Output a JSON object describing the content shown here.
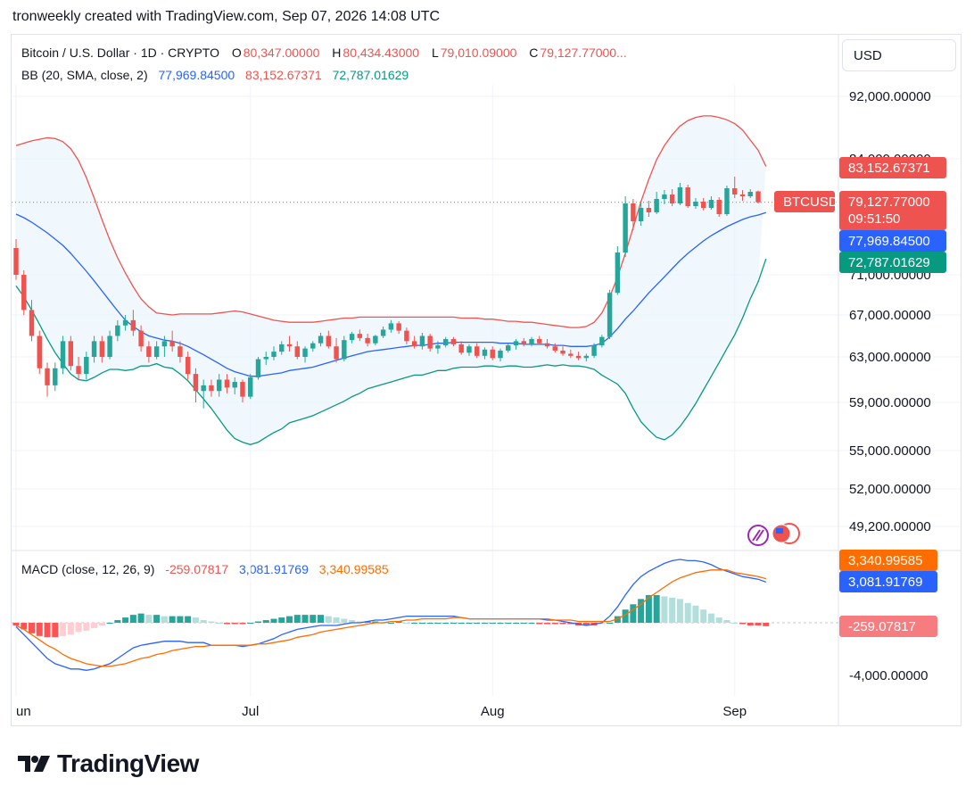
{
  "header": {
    "text": "tronweekly created with TradingView.com, Sep 07, 2026 14:08 UTC"
  },
  "legend": {
    "symbol": "Bitcoin / U.S. Dollar · 1D · CRYPTO",
    "open_label": "O",
    "open": "80,347.00000",
    "high_label": "H",
    "high": "80,434.43000",
    "low_label": "L",
    "low": "79,010.09000",
    "close_label": "C",
    "close": "79,127.77000...",
    "bb_label": "BB (20, SMA, close, 2)",
    "bb_basis": "77,969.84500",
    "bb_upper": "83,152.67371",
    "bb_lower": "72,787.01629",
    "macd_label": "MACD (close, 12, 26, 9)",
    "macd_hist": "-259.07817",
    "macd_line": "3,081.91769",
    "macd_signal": "3,340.99585"
  },
  "currency_button": "USD",
  "badges": {
    "upper": "83,152.67371",
    "ticker": "BTCUSD",
    "price": "79,127.77000",
    "countdown": "09:51:50",
    "basis": "77,969.84500",
    "lower": "72,787.01629",
    "macd_signal": "3,340.99585",
    "macd_line": "3,081.91769",
    "macd_hist": "-259.07817"
  },
  "colors": {
    "up": "#26a69a",
    "down": "#ef5350",
    "bb_upper": "#ef5350",
    "bb_basis": "#2962ff",
    "bb_lower": "#089981",
    "bb_fill": "#e3f2fd",
    "macd_line": "#2962ff",
    "signal_line": "#ff6d00"
  },
  "footer_brand": "TradingView",
  "chart_data": [
    {
      "type": "candlestick",
      "title": "Bitcoin / U.S. Dollar · 1D · CRYPTO",
      "y_ticks": [
        "92,000.00000",
        "84,000.00000",
        "71,000.00000",
        "67,000.00000",
        "63,000.00000",
        "59,000.00000",
        "55,000.00000",
        "52,000.00000",
        "49,200.00000"
      ],
      "y_tick_values": [
        92000,
        84000,
        71000,
        67000,
        63000,
        59000,
        55000,
        52000,
        49200
      ],
      "x_ticks": [
        {
          "label": "Jun",
          "index": 0
        },
        {
          "label": "Jul",
          "index": 30
        },
        {
          "label": "Aug",
          "index": 61
        },
        {
          "label": "Sep",
          "index": 92
        }
      ],
      "ohlc": [
        [
          74000,
          75000,
          70500,
          71000
        ],
        [
          71000,
          71500,
          67000,
          67500
        ],
        [
          67500,
          68500,
          64500,
          65000
        ],
        [
          65000,
          65500,
          61500,
          62000
        ],
        [
          62000,
          62500,
          59500,
          60500
        ],
        [
          60500,
          62500,
          60000,
          62000
        ],
        [
          62000,
          65000,
          61500,
          64500
        ],
        [
          64500,
          65000,
          61800,
          62200
        ],
        [
          62200,
          63000,
          61000,
          61500
        ],
        [
          61500,
          63500,
          61000,
          63000
        ],
        [
          63000,
          65000,
          62500,
          64500
        ],
        [
          64500,
          65000,
          62500,
          63000
        ],
        [
          63000,
          65500,
          62800,
          65000
        ],
        [
          65000,
          66500,
          64500,
          66000
        ],
        [
          66000,
          67000,
          65500,
          66500
        ],
        [
          66500,
          67500,
          65000,
          65500
        ],
        [
          65500,
          66000,
          63500,
          64000
        ],
        [
          64000,
          64500,
          62500,
          63000
        ],
        [
          63000,
          64500,
          62800,
          64000
        ],
        [
          64000,
          65000,
          63000,
          64500
        ],
        [
          64500,
          65500,
          63500,
          64000
        ],
        [
          64000,
          64500,
          62500,
          63000
        ],
        [
          63000,
          63500,
          61000,
          61500
        ],
        [
          61500,
          62000,
          59000,
          60000
        ],
        [
          60000,
          61000,
          58500,
          60500
        ],
        [
          60500,
          61000,
          59500,
          60000
        ],
        [
          60000,
          61500,
          59500,
          61000
        ],
        [
          61000,
          61500,
          59800,
          60300
        ],
        [
          60300,
          61200,
          59700,
          60800
        ],
        [
          60800,
          61000,
          59000,
          59500
        ],
        [
          59500,
          61500,
          59300,
          61200
        ],
        [
          61200,
          63000,
          61000,
          62800
        ],
        [
          62800,
          63500,
          62300,
          63000
        ],
        [
          63000,
          64000,
          62700,
          63500
        ],
        [
          63500,
          64500,
          63200,
          64200
        ],
        [
          64200,
          65000,
          63500,
          64000
        ],
        [
          64000,
          64500,
          62800,
          63000
        ],
        [
          63000,
          64000,
          62500,
          63800
        ],
        [
          63800,
          64500,
          63500,
          64300
        ],
        [
          64300,
          65300,
          64000,
          65000
        ],
        [
          65000,
          65500,
          63800,
          64000
        ],
        [
          64000,
          64800,
          62500,
          62800
        ],
        [
          62800,
          65000,
          62600,
          64600
        ],
        [
          64600,
          65400,
          64300,
          65200
        ],
        [
          65200,
          65600,
          64500,
          64800
        ],
        [
          64800,
          65200,
          64000,
          64300
        ],
        [
          64300,
          65100,
          64100,
          65000
        ],
        [
          65000,
          65900,
          64800,
          65600
        ],
        [
          65600,
          66500,
          65300,
          66200
        ],
        [
          66200,
          66400,
          65200,
          65500
        ],
        [
          65500,
          65800,
          64200,
          64500
        ],
        [
          64500,
          65000,
          63800,
          64000
        ],
        [
          64000,
          65300,
          63700,
          65000
        ],
        [
          65000,
          65200,
          63500,
          63800
        ],
        [
          63800,
          64500,
          63300,
          64100
        ],
        [
          64100,
          64900,
          63900,
          64700
        ],
        [
          64700,
          64900,
          64000,
          64200
        ],
        [
          64200,
          64500,
          63200,
          63400
        ],
        [
          63400,
          64200,
          63100,
          64000
        ],
        [
          64000,
          64300,
          62900,
          63100
        ],
        [
          63100,
          63900,
          62800,
          63700
        ],
        [
          63700,
          64000,
          62700,
          62900
        ],
        [
          62900,
          63800,
          62600,
          63600
        ],
        [
          63600,
          64300,
          63400,
          64100
        ],
        [
          64100,
          64700,
          63700,
          64500
        ],
        [
          64500,
          64800,
          64000,
          64200
        ],
        [
          64200,
          64900,
          64000,
          64700
        ],
        [
          64700,
          65000,
          64200,
          64300
        ],
        [
          64300,
          64700,
          63800,
          64000
        ],
        [
          64000,
          64300,
          63400,
          63600
        ],
        [
          63600,
          64000,
          63100,
          63300
        ],
        [
          63300,
          63700,
          62900,
          63100
        ],
        [
          63100,
          63500,
          62700,
          62900
        ],
        [
          62900,
          63300,
          62600,
          63100
        ],
        [
          63100,
          64300,
          62900,
          64100
        ],
        [
          64100,
          65100,
          63900,
          64900
        ],
        [
          64900,
          69500,
          64700,
          69200
        ],
        [
          69200,
          74200,
          69000,
          73500
        ],
        [
          73500,
          79800,
          73000,
          79000
        ],
        [
          79000,
          79500,
          76000,
          77000
        ],
        [
          77000,
          79000,
          76500,
          78500
        ],
        [
          78500,
          79300,
          77500,
          78000
        ],
        [
          78000,
          80300,
          77800,
          79500
        ],
        [
          79500,
          80500,
          78900,
          80000
        ],
        [
          80000,
          80600,
          78700,
          79000
        ],
        [
          79000,
          81300,
          78800,
          80800
        ],
        [
          80800,
          81100,
          78500,
          78700
        ],
        [
          78700,
          79600,
          78400,
          79200
        ],
        [
          79200,
          79600,
          78200,
          78500
        ],
        [
          78500,
          79800,
          78300,
          79400
        ],
        [
          79400,
          79700,
          77500,
          77800
        ],
        [
          77800,
          81000,
          77600,
          80700
        ],
        [
          80700,
          82000,
          79600,
          80000
        ],
        [
          80000,
          80500,
          79300,
          79800
        ],
        [
          79800,
          80600,
          79600,
          80300
        ],
        [
          80347,
          80434.43,
          79010.09,
          79127.77
        ]
      ],
      "bollinger": {
        "upper": [
          85700,
          86000,
          86300,
          86500,
          86700,
          86600,
          86200,
          85300,
          83800,
          81900,
          79600,
          77200,
          74900,
          72900,
          71200,
          69800,
          68600,
          67800,
          67200,
          67100,
          67000,
          67100,
          67100,
          67100,
          67100,
          67100,
          67200,
          67300,
          67400,
          67300,
          67100,
          66900,
          66700,
          66500,
          66400,
          66300,
          66300,
          66300,
          66300,
          66400,
          66500,
          66600,
          66700,
          66700,
          66800,
          66800,
          66800,
          66800,
          66800,
          66800,
          66800,
          66800,
          66800,
          66800,
          66800,
          66800,
          66800,
          66700,
          66700,
          66700,
          66600,
          66600,
          66500,
          66400,
          66400,
          66300,
          66300,
          66200,
          66100,
          66000,
          65900,
          65800,
          65800,
          65900,
          66300,
          67200,
          68800,
          70800,
          73400,
          76300,
          79200,
          81700,
          83900,
          85700,
          87100,
          88200,
          88900,
          89300,
          89500,
          89500,
          89300,
          89000,
          88500,
          87700,
          86400,
          85100,
          83152.67
        ],
        "basis": [
          77800,
          77400,
          76900,
          76300,
          75700,
          75000,
          74300,
          73400,
          72400,
          71400,
          70400,
          69400,
          68400,
          67400,
          66500,
          65900,
          65400,
          65000,
          64800,
          64600,
          64500,
          64300,
          64000,
          63600,
          63200,
          62800,
          62400,
          62000,
          61700,
          61500,
          61300,
          61300,
          61400,
          61500,
          61600,
          61800,
          61900,
          62000,
          62100,
          62300,
          62500,
          62700,
          62900,
          63100,
          63300,
          63500,
          63600,
          63700,
          63800,
          63900,
          64000,
          64100,
          64100,
          64200,
          64300,
          64300,
          64400,
          64400,
          64400,
          64400,
          64400,
          64400,
          64300,
          64300,
          64300,
          64200,
          64200,
          64200,
          64200,
          64100,
          64100,
          64000,
          64000,
          64000,
          64100,
          64300,
          64900,
          65700,
          66600,
          67400,
          68300,
          69200,
          70000,
          70800,
          71700,
          72600,
          73400,
          74100,
          74800,
          75400,
          75900,
          76400,
          76800,
          77200,
          77500,
          77700,
          77969.85
        ],
        "lower": [
          69900,
          68800,
          67500,
          66100,
          64700,
          63400,
          62400,
          61500,
          61000,
          60900,
          61200,
          61600,
          61900,
          61900,
          61800,
          61900,
          62200,
          62200,
          62400,
          62100,
          62000,
          61500,
          60900,
          60100,
          59300,
          58500,
          57600,
          56700,
          56000,
          55700,
          55500,
          55700,
          56100,
          56500,
          56800,
          57300,
          57500,
          57700,
          57900,
          58200,
          58500,
          58800,
          59100,
          59500,
          59800,
          60200,
          60400,
          60600,
          60800,
          61000,
          61200,
          61400,
          61400,
          61600,
          61800,
          61800,
          62000,
          62100,
          62100,
          62100,
          62200,
          62200,
          62100,
          62200,
          62200,
          62100,
          62100,
          62200,
          62300,
          62200,
          62300,
          62200,
          62200,
          62100,
          61900,
          61400,
          61000,
          60600,
          59800,
          58500,
          57400,
          56700,
          56100,
          55900,
          56300,
          57000,
          57900,
          58900,
          60100,
          61300,
          62500,
          63800,
          65100,
          66700,
          68600,
          70300,
          72787.02
        ]
      }
    },
    {
      "type": "macd",
      "title": "MACD (close, 12, 26, 9)",
      "y_ticks": [
        "-4,000.00000"
      ],
      "y_tick_values": [
        -4000
      ],
      "macd": [
        -300,
        -900,
        -1500,
        -2100,
        -2700,
        -3100,
        -3300,
        -3500,
        -3500,
        -3600,
        -3500,
        -3300,
        -3100,
        -2700,
        -2300,
        -1900,
        -1700,
        -1600,
        -1500,
        -1400,
        -1400,
        -1400,
        -1500,
        -1500,
        -1500,
        -1700,
        -1700,
        -1700,
        -1700,
        -1800,
        -1700,
        -1600,
        -1400,
        -1200,
        -900,
        -700,
        -500,
        -400,
        -300,
        -200,
        -200,
        -200,
        -100,
        0,
        0,
        100,
        200,
        200,
        300,
        400,
        500,
        500,
        500,
        500,
        500,
        500,
        500,
        400,
        300,
        300,
        300,
        300,
        300,
        300,
        300,
        300,
        300,
        300,
        200,
        200,
        100,
        0,
        -100,
        -200,
        -100,
        0,
        500,
        1200,
        2100,
        2900,
        3500,
        3900,
        4200,
        4500,
        4700,
        4800,
        4700,
        4700,
        4600,
        4400,
        4100,
        3900,
        3700,
        3500,
        3400,
        3300,
        3081.92
      ],
      "signal": [
        -200,
        -500,
        -900,
        -1300,
        -1700,
        -2000,
        -2400,
        -2700,
        -2900,
        -3100,
        -3200,
        -3300,
        -3300,
        -3200,
        -3100,
        -2900,
        -2700,
        -2600,
        -2400,
        -2300,
        -2100,
        -2000,
        -1900,
        -1800,
        -1800,
        -1700,
        -1700,
        -1700,
        -1700,
        -1700,
        -1700,
        -1600,
        -1600,
        -1500,
        -1400,
        -1300,
        -1100,
        -1000,
        -900,
        -700,
        -600,
        -500,
        -400,
        -300,
        -200,
        -100,
        0,
        0,
        100,
        100,
        200,
        200,
        300,
        300,
        300,
        300,
        400,
        400,
        300,
        300,
        300,
        300,
        300,
        300,
        300,
        300,
        300,
        300,
        300,
        200,
        200,
        200,
        100,
        100,
        100,
        100,
        100,
        300,
        600,
        1000,
        1400,
        1900,
        2300,
        2700,
        3100,
        3400,
        3600,
        3800,
        3900,
        4000,
        4000,
        4000,
        3800,
        3700,
        3600,
        3500,
        3340.99
      ],
      "histogram": [
        -200,
        -500,
        -800,
        -1000,
        -1100,
        -1100,
        -1000,
        -900,
        -700,
        -600,
        -400,
        -200,
        0,
        200,
        400,
        600,
        700,
        600,
        600,
        500,
        500,
        500,
        500,
        400,
        200,
        100,
        0,
        -100,
        -100,
        -100,
        0,
        100,
        200,
        300,
        400,
        500,
        600,
        600,
        600,
        600,
        500,
        400,
        300,
        200,
        100,
        100,
        100,
        0,
        0,
        100,
        0,
        0,
        0,
        0,
        0,
        0,
        0,
        0,
        0,
        0,
        0,
        0,
        0,
        0,
        0,
        0,
        0,
        -100,
        -100,
        -100,
        -100,
        -100,
        -200,
        -200,
        -200,
        -100,
        0,
        500,
        1000,
        1400,
        1800,
        2100,
        2100,
        2000,
        1900,
        1800,
        1500,
        1300,
        1000,
        700,
        400,
        200,
        0,
        -100,
        -200,
        -200,
        -259.08
      ]
    }
  ]
}
